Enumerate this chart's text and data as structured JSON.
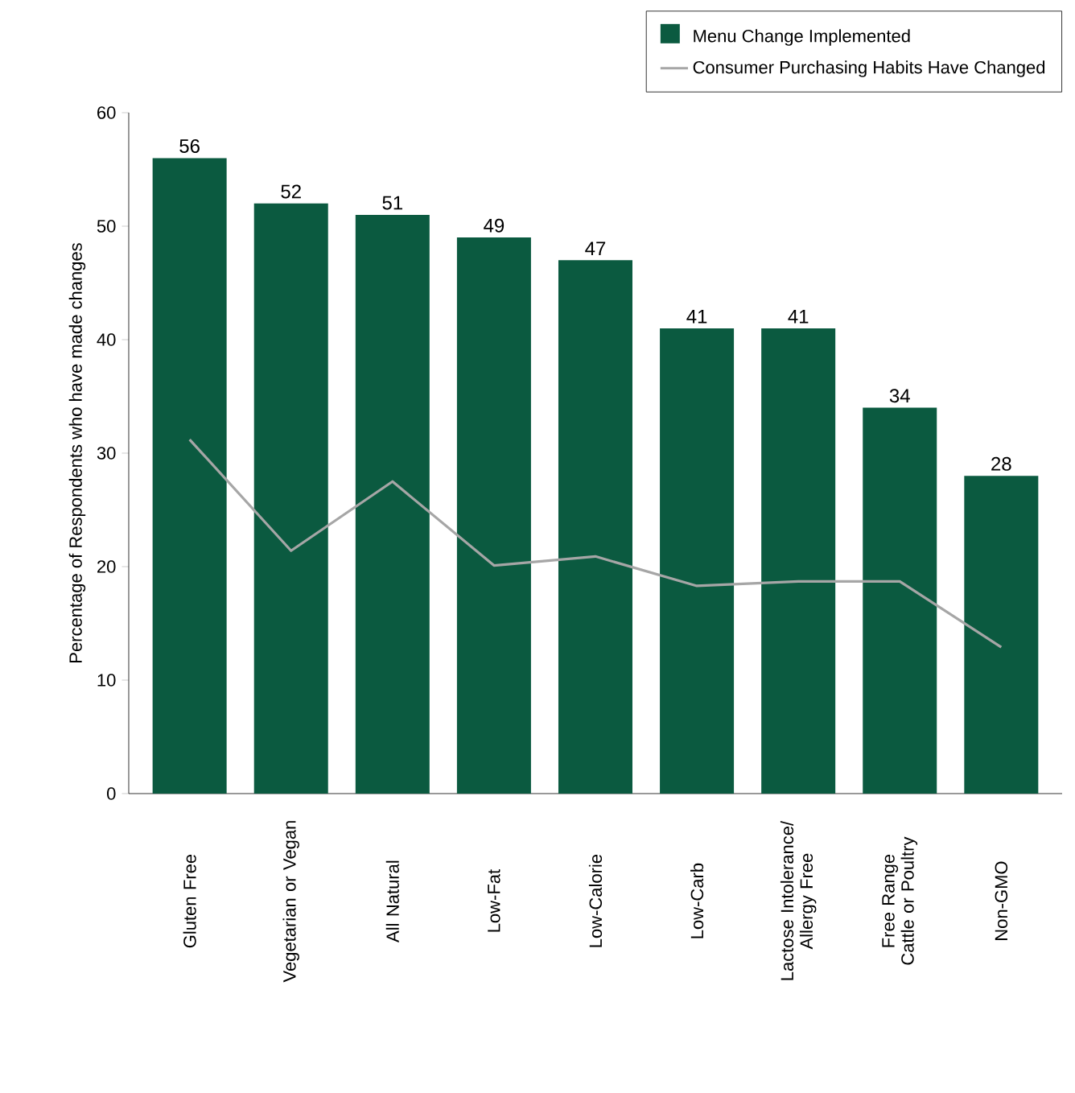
{
  "chart_data": {
    "type": "bar",
    "ylabel": "Percentage of Respondents who have made changes",
    "categories": [
      "Gluten Free",
      "Vegetarian or Vegan",
      "All Natural",
      "Low-Fat",
      "Low-Calorie",
      "Low-Carb",
      "Lactose Intolerance/ Allergy Free",
      "Free Range Cattle or Poultry",
      "Non-GMO"
    ],
    "series": [
      {
        "name": "Menu Change Implemented",
        "color": "#0b5a40",
        "values": [
          56,
          52,
          51,
          49,
          47,
          41,
          41,
          34,
          28
        ],
        "value_labels": [
          "56",
          "52",
          "51",
          "49",
          "47",
          "41",
          "41",
          "34",
          "28"
        ]
      },
      {
        "name": "Consumer Purchasing Habits Have Changed",
        "type": "line",
        "color": "#a6a6a6",
        "values": [
          31.2,
          21.4,
          27.5,
          20.1,
          20.9,
          18.3,
          18.7,
          18.7,
          12.9
        ]
      }
    ],
    "ylim": [
      0,
      60
    ],
    "yticks": [
      0,
      10,
      20,
      30,
      40,
      50,
      60
    ],
    "legend": "top right",
    "grid": false
  }
}
